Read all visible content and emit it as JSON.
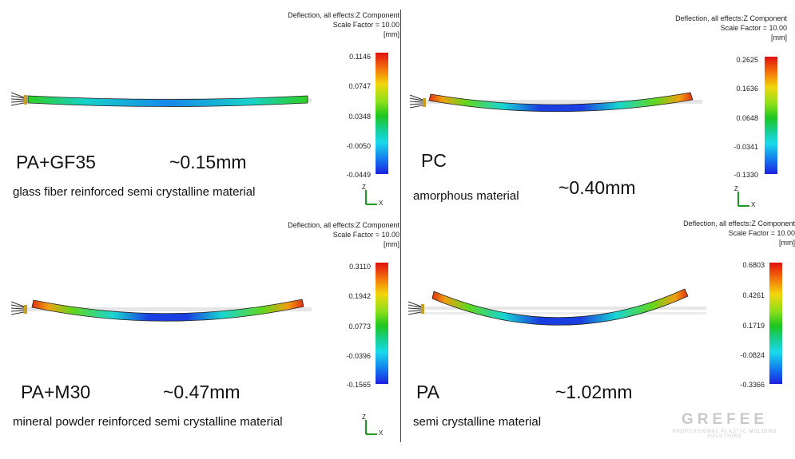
{
  "legend": {
    "line1": "Deflection, all effects:Z Component",
    "line2": "Scale Factor = 10.00",
    "unit": "[mm]"
  },
  "panels": [
    {
      "material": "PA+GF35",
      "deflection": "~0.15mm",
      "description": "glass fiber reinforced semi crystalline material",
      "ticks": [
        "0.1146",
        "0.0747",
        "0.0348",
        "-0.0050",
        "-0.0449"
      ]
    },
    {
      "material": "PC",
      "deflection": "~0.40mm",
      "description": "amorphous material",
      "ticks": [
        "0.2625",
        "0.1636",
        "0.0648",
        "-0.0341",
        "-0.1330"
      ]
    },
    {
      "material": "PA+M30",
      "deflection": "~0.47mm",
      "description": "mineral powder reinforced semi crystalline material",
      "ticks": [
        "0.3110",
        "0.1942",
        "0.0773",
        "-0.0396",
        "-0.1565"
      ]
    },
    {
      "material": "PA",
      "deflection": "~1.02mm",
      "description": "semi crystalline material",
      "ticks": [
        "0.6803",
        "0.4261",
        "0.1719",
        "-0.0824",
        "-0.3366"
      ]
    }
  ],
  "axis": {
    "z": "Z",
    "x": "X"
  },
  "watermark": {
    "name": "GREFEE",
    "tagline": "PROFESSIONAL PLASTIC MOLDING SOLUTIONS"
  }
}
